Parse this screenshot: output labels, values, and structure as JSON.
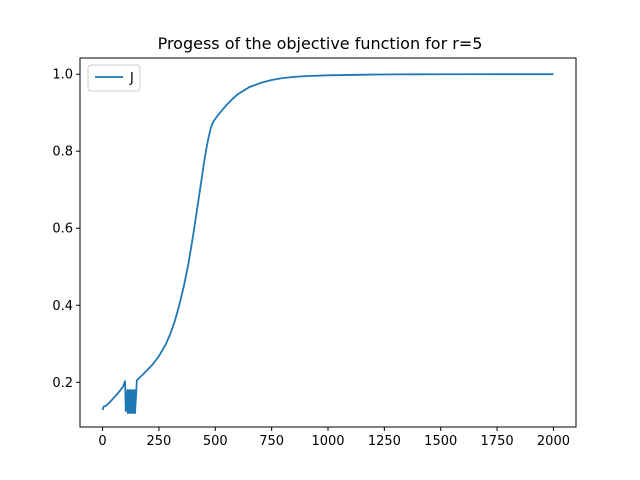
{
  "chart_data": {
    "type": "line",
    "title": "Progess of the objective function for r=5",
    "xlabel": "",
    "ylabel": "",
    "xlim": [
      -100,
      2100
    ],
    "ylim": [
      0.084,
      1.042
    ],
    "xticks": [
      0,
      250,
      500,
      750,
      1000,
      1250,
      1500,
      1750,
      2000
    ],
    "xtick_labels": [
      "0",
      "250",
      "500",
      "750",
      "1000",
      "1250",
      "1500",
      "1750",
      "2000"
    ],
    "yticks": [
      0.2,
      0.4,
      0.6,
      0.8,
      1.0
    ],
    "ytick_labels": [
      "0.2",
      "0.4",
      "0.6",
      "0.8",
      "1.0"
    ],
    "grid": false,
    "legend_position": "upper left",
    "series": [
      {
        "name": "J",
        "color": "#1f77b4",
        "x": [
          0,
          5,
          15,
          30,
          50,
          70,
          90,
          100,
          103,
          110,
          112,
          118,
          120,
          126,
          128,
          134,
          136,
          142,
          144,
          150,
          152,
          160,
          180,
          200,
          220,
          250,
          280,
          300,
          320,
          340,
          360,
          380,
          400,
          420,
          440,
          450,
          460,
          470,
          480,
          490,
          495,
          500,
          510,
          525,
          550,
          575,
          600,
          650,
          700,
          750,
          800,
          850,
          900,
          1000,
          1100,
          1200,
          1300,
          1400,
          1500,
          1600,
          1750,
          2000
        ],
        "y": [
          0.128,
          0.137,
          0.139,
          0.147,
          0.16,
          0.173,
          0.188,
          0.203,
          0.125,
          0.18,
          0.12,
          0.18,
          0.12,
          0.18,
          0.12,
          0.18,
          0.12,
          0.18,
          0.12,
          0.18,
          0.205,
          0.21,
          0.221,
          0.233,
          0.245,
          0.268,
          0.298,
          0.325,
          0.358,
          0.4,
          0.448,
          0.505,
          0.575,
          0.652,
          0.73,
          0.77,
          0.805,
          0.835,
          0.86,
          0.875,
          0.88,
          0.884,
          0.892,
          0.903,
          0.92,
          0.935,
          0.948,
          0.966,
          0.977,
          0.985,
          0.99,
          0.993,
          0.995,
          0.997,
          0.998,
          0.999,
          0.9995,
          0.9997,
          0.9998,
          0.9999,
          1.0,
          1.0
        ]
      }
    ]
  }
}
